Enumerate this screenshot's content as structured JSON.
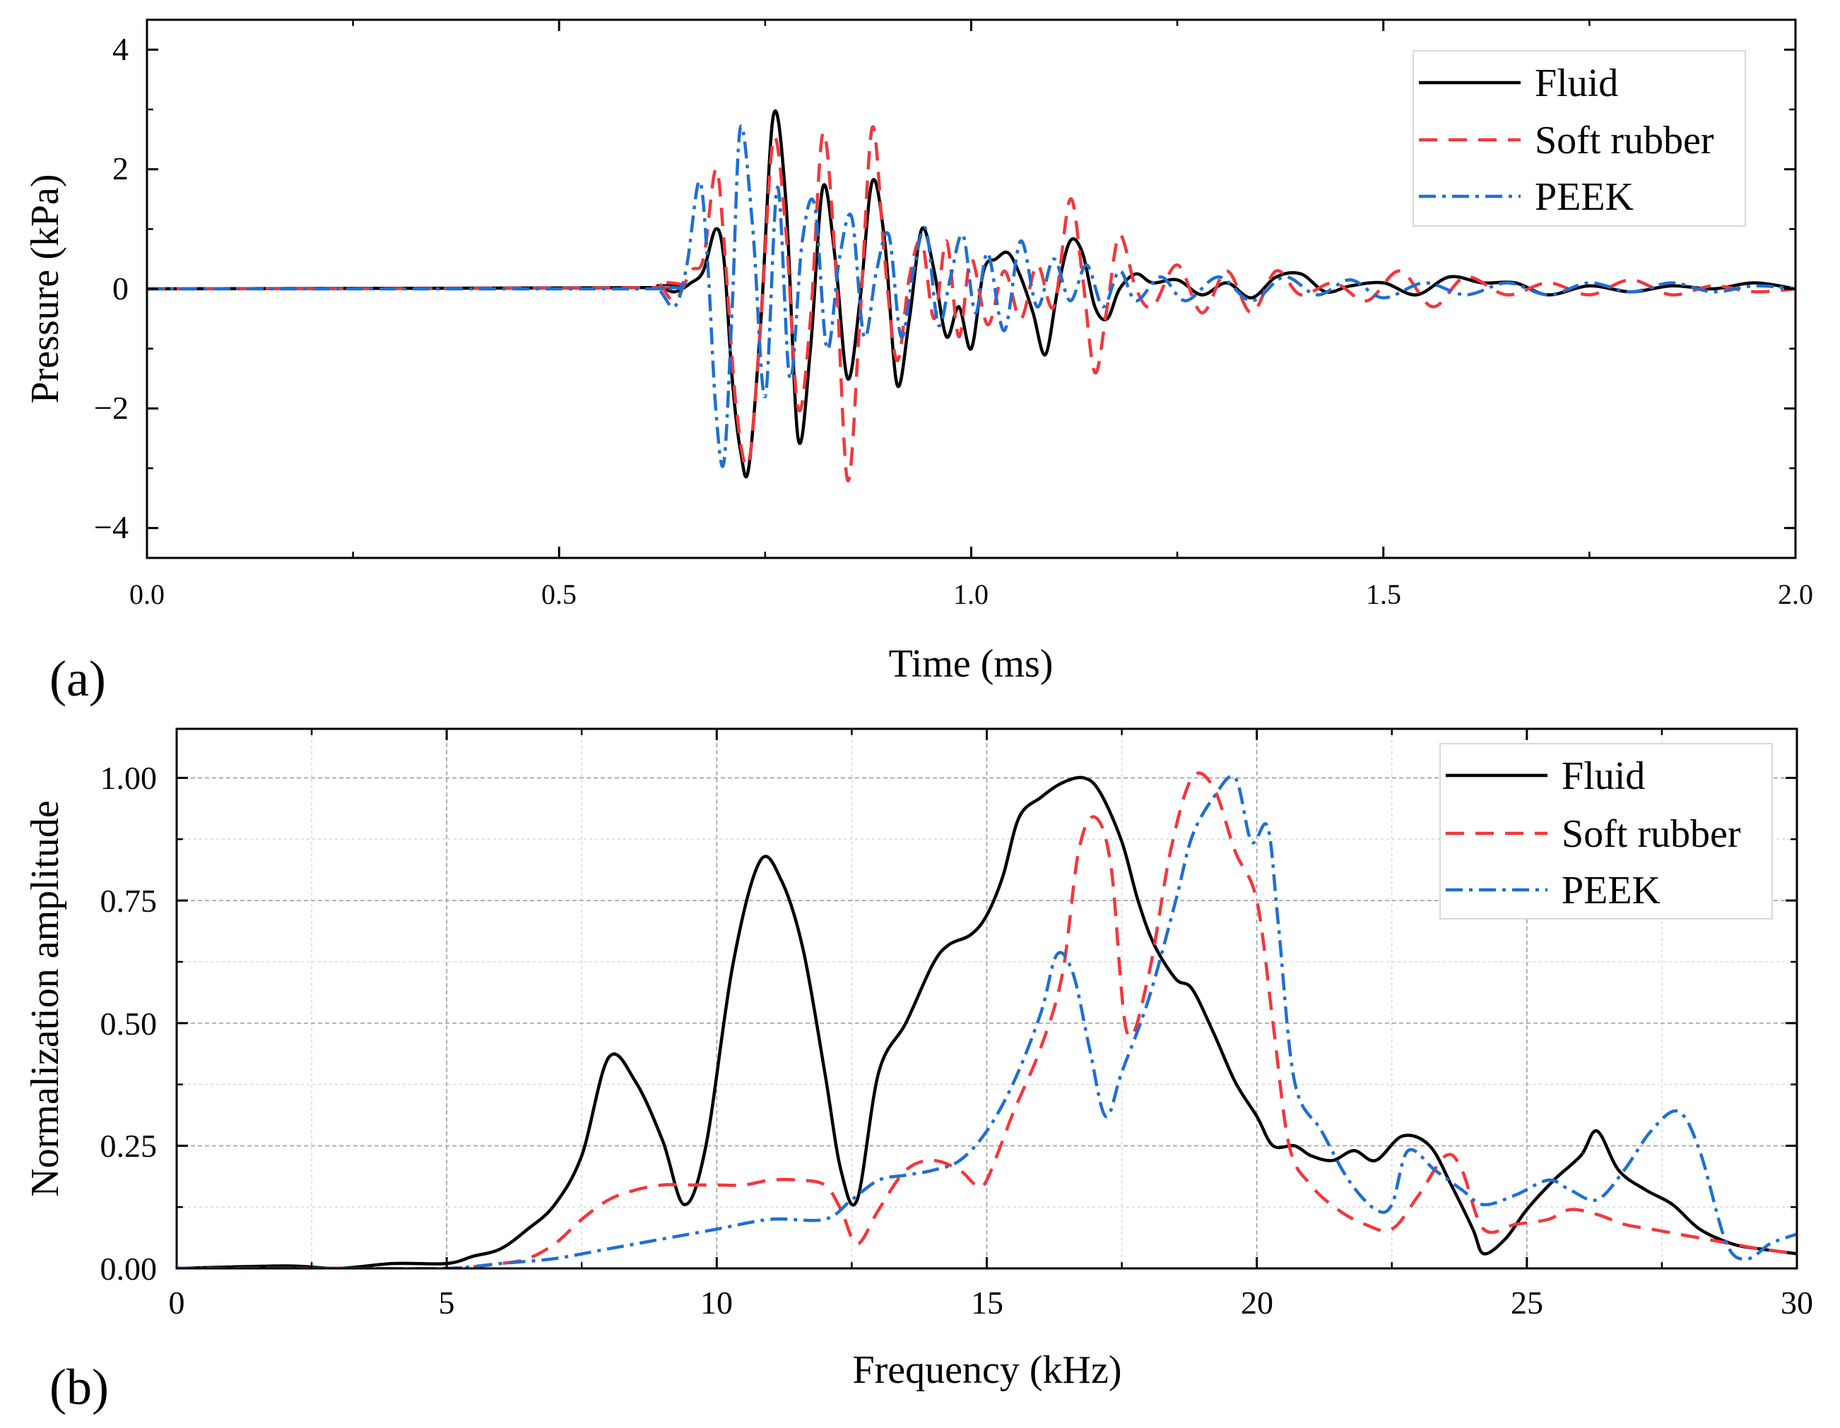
{
  "chart_data": [
    {
      "type": "line",
      "panel_label": "(a)",
      "xlabel": "Time (ms)",
      "ylabel": "Pressure (kPa)",
      "xlim": [
        0.0,
        2.0
      ],
      "ylim": [
        -4.5,
        4.5
      ],
      "x_ticks": [
        0.0,
        0.5,
        1.0,
        1.5,
        2.0
      ],
      "x_tick_labels": [
        "0.0",
        "0.5",
        "1.0",
        "1.5",
        "2.0"
      ],
      "y_ticks": [
        -4,
        -2,
        0,
        2,
        4
      ],
      "y_tick_labels": [
        "−4",
        "−2",
        "0",
        "2",
        "4"
      ],
      "grid": false,
      "legend_position": "top-right",
      "series": [
        {
          "name": "Fluid",
          "color": "#000000",
          "style": "solid",
          "x": [
            0.0,
            0.6,
            0.62,
            0.64,
            0.66,
            0.675,
            0.69,
            0.7,
            0.71,
            0.72,
            0.73,
            0.745,
            0.76,
            0.775,
            0.79,
            0.805,
            0.82,
            0.835,
            0.85,
            0.865,
            0.88,
            0.895,
            0.91,
            0.925,
            0.94,
            0.955,
            0.97,
            0.985,
            1.0,
            1.015,
            1.03,
            1.045,
            1.06,
            1.075,
            1.09,
            1.105,
            1.12,
            1.135,
            1.15,
            1.165,
            1.18,
            1.2,
            1.22,
            1.25,
            1.28,
            1.31,
            1.34,
            1.37,
            1.4,
            1.43,
            1.46,
            1.5,
            1.54,
            1.58,
            1.62,
            1.66,
            1.7,
            1.75,
            1.8,
            1.85,
            1.9,
            1.95,
            2.0
          ],
          "y": [
            0,
            0.02,
            0.05,
            -0.05,
            0.1,
            0.3,
            1.0,
            0.5,
            -1.5,
            -2.7,
            -3.0,
            -0.5,
            2.9,
            1.5,
            -2.5,
            -1.0,
            1.7,
            0.5,
            -1.5,
            -0.2,
            1.8,
            0.8,
            -1.6,
            -0.5,
            1.0,
            0.3,
            -0.8,
            -0.3,
            -1.0,
            0.3,
            0.5,
            0.6,
            0.2,
            -0.4,
            -1.1,
            0.0,
            0.8,
            0.6,
            -0.3,
            -0.5,
            0.0,
            0.25,
            0.1,
            0.15,
            -0.1,
            0.1,
            -0.15,
            0.2,
            0.25,
            -0.05,
            0.05,
            0.1,
            -0.1,
            0.2,
            0.1,
            0.1,
            -0.1,
            0.05,
            -0.05,
            0.05,
            0.0,
            0.1,
            0.0
          ]
        },
        {
          "name": "Soft rubber",
          "color": "#f2373c",
          "style": "dashed",
          "x": [
            0.0,
            0.6,
            0.62,
            0.64,
            0.66,
            0.675,
            0.69,
            0.7,
            0.715,
            0.73,
            0.745,
            0.76,
            0.775,
            0.79,
            0.805,
            0.82,
            0.835,
            0.85,
            0.865,
            0.88,
            0.895,
            0.91,
            0.925,
            0.94,
            0.955,
            0.97,
            0.985,
            1.0,
            1.02,
            1.04,
            1.06,
            1.08,
            1.1,
            1.12,
            1.135,
            1.15,
            1.165,
            1.18,
            1.2,
            1.22,
            1.25,
            1.28,
            1.31,
            1.34,
            1.37,
            1.4,
            1.44,
            1.48,
            1.52,
            1.56,
            1.6,
            1.65,
            1.7,
            1.75,
            1.8,
            1.85,
            1.9,
            1.95,
            2.0
          ],
          "y": [
            0,
            0.02,
            0.1,
            -0.2,
            0.3,
            0.5,
            2.0,
            0.8,
            -2.0,
            -2.9,
            -0.5,
            2.5,
            1.0,
            -2.0,
            -0.5,
            2.6,
            0.5,
            -3.2,
            -0.5,
            2.7,
            0.5,
            -1.2,
            0.2,
            0.8,
            -0.5,
            0.8,
            -0.8,
            0.5,
            -0.6,
            0.3,
            -0.5,
            0.4,
            -0.3,
            1.5,
            0.2,
            -1.4,
            -0.3,
            0.9,
            0.0,
            -0.3,
            0.4,
            -0.4,
            0.3,
            -0.4,
            0.3,
            -0.1,
            0.1,
            -0.2,
            0.3,
            -0.3,
            0.2,
            -0.1,
            0.1,
            -0.1,
            0.15,
            -0.1,
            0.05,
            -0.05,
            0.0
          ]
        },
        {
          "name": "PEEK",
          "color": "#1f6fd1",
          "style": "dashdot",
          "x": [
            0.0,
            0.6,
            0.62,
            0.64,
            0.655,
            0.67,
            0.68,
            0.69,
            0.7,
            0.71,
            0.72,
            0.735,
            0.75,
            0.765,
            0.78,
            0.795,
            0.81,
            0.825,
            0.84,
            0.855,
            0.87,
            0.885,
            0.9,
            0.915,
            0.93,
            0.945,
            0.96,
            0.975,
            0.99,
            1.005,
            1.02,
            1.04,
            1.06,
            1.08,
            1.1,
            1.12,
            1.14,
            1.16,
            1.18,
            1.2,
            1.23,
            1.26,
            1.3,
            1.34,
            1.38,
            1.42,
            1.46,
            1.5,
            1.55,
            1.6,
            1.65,
            1.7,
            1.75,
            1.8,
            1.85,
            1.9,
            1.95,
            2.0
          ],
          "y": [
            0,
            0.0,
            0.0,
            -0.3,
            0.4,
            1.8,
            0.5,
            -2.0,
            -2.9,
            -0.3,
            2.7,
            1.0,
            -1.8,
            1.7,
            -1.5,
            0.8,
            1.4,
            -1.0,
            0.5,
            1.2,
            -0.8,
            0.3,
            0.9,
            -0.8,
            0.3,
            1.0,
            -0.6,
            0.2,
            0.9,
            -0.4,
            0.6,
            -0.7,
            0.8,
            -0.3,
            0.5,
            -0.2,
            0.4,
            -0.3,
            0.3,
            -0.2,
            0.2,
            -0.2,
            0.2,
            -0.2,
            0.2,
            -0.1,
            0.15,
            -0.15,
            0.1,
            -0.1,
            0.1,
            -0.1,
            0.1,
            -0.05,
            0.1,
            -0.05,
            0.05,
            0.0
          ]
        }
      ]
    },
    {
      "type": "line",
      "panel_label": "(b)",
      "xlabel": "Frequency (kHz)",
      "ylabel": "Normalization amplitude",
      "xlim": [
        0,
        30
      ],
      "ylim": [
        0.0,
        1.1
      ],
      "x_ticks": [
        0,
        5,
        10,
        15,
        20,
        25,
        30
      ],
      "x_tick_labels": [
        "0",
        "5",
        "10",
        "15",
        "20",
        "25",
        "30"
      ],
      "y_ticks": [
        0.0,
        0.25,
        0.5,
        0.75,
        1.0
      ],
      "y_tick_labels": [
        "0.00",
        "0.25",
        "0.50",
        "0.75",
        "1.00"
      ],
      "grid": true,
      "legend_position": "top-right",
      "series": [
        {
          "name": "Fluid",
          "color": "#000000",
          "style": "solid",
          "x": [
            0,
            2,
            3,
            4,
            5,
            5.5,
            6,
            6.5,
            7,
            7.5,
            8,
            8.5,
            9,
            9.4,
            9.8,
            10.3,
            10.8,
            11.2,
            11.6,
            12,
            12.3,
            12.6,
            13,
            13.5,
            14,
            14.3,
            14.7,
            15,
            15.3,
            15.6,
            16,
            16.4,
            16.8,
            17.1,
            17.5,
            17.8,
            18.1,
            18.5,
            18.8,
            19.2,
            19.6,
            20,
            20.3,
            20.7,
            21,
            21.4,
            21.8,
            22.2,
            22.7,
            23.2,
            23.6,
            24,
            24.2,
            24.6,
            25,
            25.5,
            26,
            26.3,
            26.7,
            27.2,
            27.7,
            28.2,
            28.8,
            29.3,
            30
          ],
          "y": [
            0.0,
            0.005,
            0.0,
            0.01,
            0.01,
            0.025,
            0.04,
            0.08,
            0.13,
            0.23,
            0.43,
            0.38,
            0.26,
            0.13,
            0.25,
            0.62,
            0.83,
            0.79,
            0.65,
            0.4,
            0.2,
            0.14,
            0.4,
            0.5,
            0.62,
            0.66,
            0.68,
            0.72,
            0.8,
            0.92,
            0.96,
            0.99,
            1.0,
            0.97,
            0.87,
            0.75,
            0.66,
            0.59,
            0.57,
            0.48,
            0.38,
            0.31,
            0.25,
            0.25,
            0.23,
            0.22,
            0.24,
            0.22,
            0.27,
            0.25,
            0.17,
            0.08,
            0.03,
            0.06,
            0.12,
            0.18,
            0.23,
            0.28,
            0.2,
            0.16,
            0.13,
            0.08,
            0.05,
            0.04,
            0.03
          ]
        },
        {
          "name": "Soft rubber",
          "color": "#f2373c",
          "style": "dashed",
          "x": [
            0,
            3,
            5,
            6,
            6.5,
            7,
            7.5,
            8,
            8.5,
            9,
            9.5,
            10,
            10.5,
            11,
            11.5,
            12,
            12.3,
            12.6,
            13,
            13.5,
            14,
            14.5,
            14.8,
            15,
            15.5,
            16,
            16.4,
            16.7,
            17,
            17.3,
            17.6,
            18,
            18.4,
            18.8,
            19.2,
            19.6,
            20,
            20.3,
            20.6,
            21,
            21.5,
            22,
            22.5,
            23,
            23.5,
            23.8,
            24.2,
            24.8,
            25.4,
            25.8,
            26.3,
            26.8,
            27.3,
            27.8,
            28.3,
            28.8,
            29.3,
            30
          ],
          "y": [
            0.0,
            0.0,
            0.0,
            0.01,
            0.02,
            0.05,
            0.1,
            0.14,
            0.16,
            0.17,
            0.17,
            0.17,
            0.17,
            0.18,
            0.18,
            0.17,
            0.12,
            0.05,
            0.12,
            0.2,
            0.22,
            0.2,
            0.17,
            0.18,
            0.32,
            0.45,
            0.6,
            0.85,
            0.92,
            0.82,
            0.48,
            0.6,
            0.85,
            1.0,
            0.98,
            0.85,
            0.75,
            0.5,
            0.25,
            0.17,
            0.12,
            0.09,
            0.08,
            0.15,
            0.23,
            0.2,
            0.08,
            0.09,
            0.1,
            0.12,
            0.11,
            0.09,
            0.08,
            0.07,
            0.06,
            0.05,
            0.04,
            0.03
          ]
        },
        {
          "name": "PEEK",
          "color": "#1f6fd1",
          "style": "dashdot",
          "x": [
            0,
            3,
            5,
            6,
            7,
            8,
            9,
            10,
            11,
            12,
            12.5,
            13,
            13.5,
            14,
            14.5,
            15,
            15.5,
            16,
            16.3,
            16.6,
            16.9,
            17.2,
            17.5,
            18,
            18.5,
            18.8,
            19.2,
            19.6,
            19.9,
            20.2,
            20.4,
            20.7,
            21.2,
            21.7,
            22.2,
            22.5,
            22.8,
            23.3,
            23.8,
            24.2,
            24.8,
            25.4,
            25.8,
            26.3,
            26.8,
            27.3,
            27.8,
            28.2,
            28.7,
            29.1,
            29.5,
            30
          ],
          "y": [
            0.0,
            0.0,
            0.0,
            0.01,
            0.02,
            0.04,
            0.06,
            0.08,
            0.1,
            0.1,
            0.14,
            0.18,
            0.19,
            0.2,
            0.22,
            0.28,
            0.38,
            0.52,
            0.64,
            0.6,
            0.45,
            0.31,
            0.4,
            0.55,
            0.75,
            0.88,
            0.96,
            1.0,
            0.87,
            0.9,
            0.7,
            0.38,
            0.28,
            0.18,
            0.12,
            0.13,
            0.24,
            0.2,
            0.16,
            0.13,
            0.15,
            0.18,
            0.16,
            0.14,
            0.2,
            0.28,
            0.32,
            0.24,
            0.05,
            0.02,
            0.05,
            0.07
          ]
        }
      ]
    }
  ]
}
